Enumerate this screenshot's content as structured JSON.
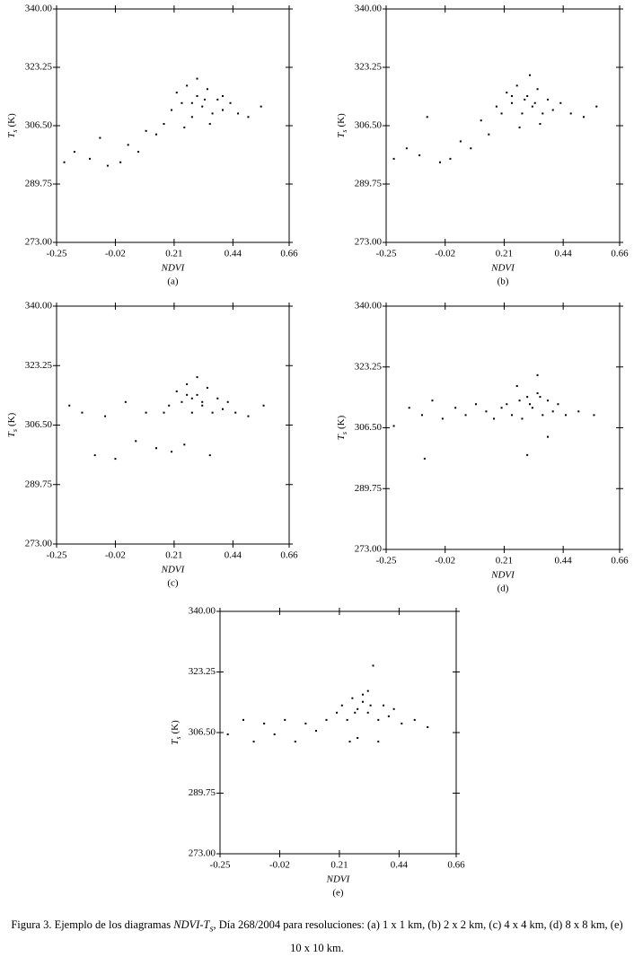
{
  "chart_data": [
    {
      "type": "scatter",
      "x_label": "NDVI",
      "y_label": {
        "symbol": "T",
        "subscript": "s",
        "unit": "(K)"
      },
      "panel_label": "(a)",
      "xlim": [
        -0.25,
        0.66
      ],
      "ylim": [
        273,
        340
      ],
      "xticks": [
        -0.25,
        -0.02,
        0.21,
        0.44,
        0.66
      ],
      "yticks": [
        {
          "value": 273,
          "label": "273.00"
        },
        {
          "value": 289.75,
          "label": "289.75"
        },
        {
          "value": 306.5,
          "label": "306.50"
        },
        {
          "value": 323.25,
          "label": "323.25"
        },
        {
          "value": 340,
          "label": "340.00"
        }
      ],
      "series": [
        {
          "color": "#000000",
          "x": [
            -0.22,
            -0.18,
            -0.12,
            -0.08,
            -0.05,
            0.0,
            0.03,
            0.07,
            0.1,
            0.14,
            0.17,
            0.2,
            0.22,
            0.24,
            0.26,
            0.28,
            0.3,
            0.32,
            0.34,
            0.36,
            0.38,
            0.4,
            0.43,
            0.46,
            0.5,
            0.55,
            0.25,
            0.3,
            0.35,
            0.4,
            0.28,
            0.33
          ],
          "values": [
            296,
            299,
            297,
            303,
            295,
            296,
            301,
            299,
            305,
            304,
            307,
            311,
            316,
            313,
            318,
            309,
            315,
            312,
            317,
            310,
            314,
            311,
            313,
            310,
            309,
            312,
            306,
            320,
            307,
            315,
            313,
            314
          ]
        }
      ]
    },
    {
      "type": "scatter",
      "x_label": "NDVI",
      "y_label": {
        "symbol": "T",
        "subscript": "s",
        "unit": "(K)"
      },
      "panel_label": "(b)",
      "xlim": [
        -0.25,
        0.66
      ],
      "ylim": [
        273,
        340
      ],
      "xticks": [
        -0.25,
        -0.02,
        0.21,
        0.44,
        0.66
      ],
      "yticks": [
        {
          "value": 273,
          "label": "273.00"
        },
        {
          "value": 289.75,
          "label": "289.75"
        },
        {
          "value": 306.5,
          "label": "306.50"
        },
        {
          "value": 323.25,
          "label": "323.25"
        },
        {
          "value": 340,
          "label": "340.00"
        }
      ],
      "series": [
        {
          "color": "#000000",
          "x": [
            -0.22,
            -0.17,
            -0.12,
            -0.09,
            -0.04,
            0.0,
            0.04,
            0.08,
            0.12,
            0.15,
            0.18,
            0.2,
            0.22,
            0.24,
            0.26,
            0.28,
            0.3,
            0.32,
            0.34,
            0.36,
            0.38,
            0.4,
            0.43,
            0.47,
            0.52,
            0.57,
            0.27,
            0.31,
            0.35,
            0.29,
            0.33,
            0.24
          ],
          "values": [
            297,
            300,
            298,
            309,
            296,
            297,
            302,
            300,
            308,
            304,
            312,
            310,
            316,
            313,
            318,
            310,
            315,
            312,
            317,
            310,
            314,
            311,
            313,
            310,
            309,
            312,
            306,
            321,
            307,
            314,
            313,
            315
          ]
        }
      ]
    },
    {
      "type": "scatter",
      "x_label": "NDVI",
      "y_label": {
        "symbol": "T",
        "subscript": "s",
        "unit": "(K)"
      },
      "panel_label": "(c)",
      "xlim": [
        -0.25,
        0.66
      ],
      "ylim": [
        273,
        340
      ],
      "xticks": [
        -0.25,
        -0.02,
        0.21,
        0.44,
        0.66
      ],
      "yticks": [
        {
          "value": 273,
          "label": "273.00"
        },
        {
          "value": 289.75,
          "label": "289.75"
        },
        {
          "value": 306.5,
          "label": "306.50"
        },
        {
          "value": 323.25,
          "label": "323.25"
        },
        {
          "value": 340,
          "label": "340.00"
        }
      ],
      "series": [
        {
          "color": "#000000",
          "x": [
            -0.2,
            -0.15,
            -0.1,
            -0.06,
            -0.02,
            0.02,
            0.06,
            0.1,
            0.14,
            0.17,
            0.19,
            0.22,
            0.24,
            0.26,
            0.28,
            0.3,
            0.32,
            0.34,
            0.36,
            0.38,
            0.4,
            0.42,
            0.45,
            0.5,
            0.56,
            0.2,
            0.25,
            0.3,
            0.35,
            0.28,
            0.32,
            0.26
          ],
          "values": [
            312,
            310,
            298,
            309,
            297,
            313,
            302,
            310,
            300,
            310,
            312,
            316,
            313,
            318,
            310,
            315,
            312,
            317,
            310,
            314,
            311,
            313,
            310,
            309,
            312,
            299,
            301,
            320,
            298,
            314,
            313,
            315
          ]
        }
      ]
    },
    {
      "type": "scatter",
      "x_label": "NDVI",
      "y_label": {
        "symbol": "T",
        "subscript": "s",
        "unit": "(K)"
      },
      "panel_label": "(d)",
      "xlim": [
        -0.25,
        0.66
      ],
      "ylim": [
        273,
        340
      ],
      "xticks": [
        -0.25,
        -0.02,
        0.21,
        0.44,
        0.66
      ],
      "yticks": [
        {
          "value": 273,
          "label": "273.00"
        },
        {
          "value": 289.75,
          "label": "289.75"
        },
        {
          "value": 306.5,
          "label": "306.50"
        },
        {
          "value": 323.25,
          "label": "323.25"
        },
        {
          "value": 340,
          "label": "340.00"
        }
      ],
      "series": [
        {
          "color": "#000000",
          "x": [
            -0.22,
            -0.16,
            -0.11,
            -0.07,
            -0.03,
            0.02,
            0.06,
            0.1,
            0.14,
            0.17,
            0.2,
            0.22,
            0.24,
            0.26,
            0.28,
            0.3,
            0.32,
            0.34,
            0.36,
            0.38,
            0.4,
            0.42,
            0.45,
            0.5,
            0.56,
            -0.1,
            0.3,
            0.34,
            0.38,
            0.27,
            0.31,
            0.35
          ],
          "values": [
            307,
            312,
            310,
            314,
            309,
            312,
            310,
            313,
            311,
            309,
            312,
            313,
            310,
            318,
            309,
            315,
            312,
            316,
            310,
            314,
            311,
            313,
            310,
            311,
            310,
            298,
            299,
            321,
            304,
            314,
            313,
            315
          ]
        }
      ]
    },
    {
      "type": "scatter",
      "x_label": "NDVI",
      "y_label": {
        "symbol": "T",
        "subscript": "s",
        "unit": "(K)"
      },
      "panel_label": "(e)",
      "xlim": [
        -0.25,
        0.66
      ],
      "ylim": [
        273,
        340
      ],
      "xticks": [
        -0.25,
        -0.02,
        0.21,
        0.44,
        0.66
      ],
      "yticks": [
        {
          "value": 273,
          "label": "273.00"
        },
        {
          "value": 289.75,
          "label": "289.75"
        },
        {
          "value": 306.5,
          "label": "306.50"
        },
        {
          "value": 323.25,
          "label": "323.25"
        },
        {
          "value": 340,
          "label": "340.00"
        }
      ],
      "series": [
        {
          "color": "#000000",
          "x": [
            -0.22,
            -0.16,
            -0.12,
            -0.08,
            -0.04,
            0.0,
            0.04,
            0.08,
            0.12,
            0.16,
            0.2,
            0.22,
            0.24,
            0.26,
            0.28,
            0.3,
            0.32,
            0.34,
            0.36,
            0.38,
            0.4,
            0.42,
            0.45,
            0.5,
            0.55,
            0.32,
            0.25,
            0.3,
            0.36,
            0.28,
            0.33,
            0.27
          ],
          "values": [
            306,
            310,
            304,
            309,
            306,
            310,
            304,
            309,
            307,
            310,
            312,
            314,
            310,
            316,
            305,
            315,
            312,
            325,
            310,
            314,
            311,
            313,
            309,
            310,
            308,
            318,
            304,
            317,
            304,
            313,
            314,
            312
          ]
        }
      ]
    }
  ],
  "caption": {
    "start": "Figura 3. Ejemplo de los diagramas ",
    "term": "NDVI-T",
    "term_subscript": "s",
    "end": ", Día 268/2004 para resoluciones: (a) 1 x 1 km, (b) 2 x 2 km, (c) 4 x 4 km, (d) 8 x 8 km, (e) 10 x 10 km."
  }
}
